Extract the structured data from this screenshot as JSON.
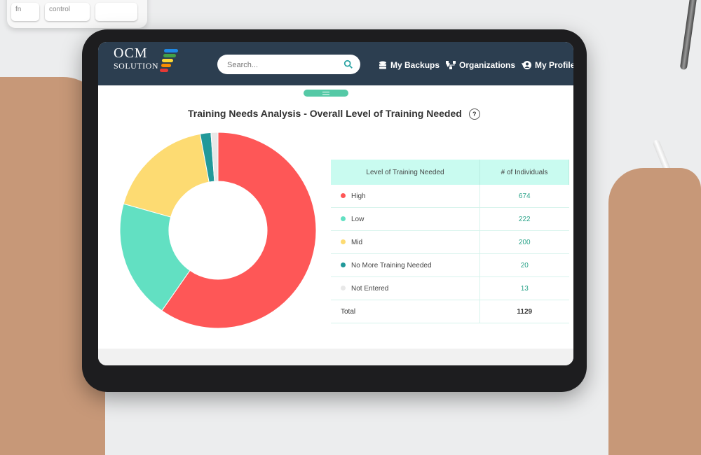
{
  "keyboard": {
    "keys": [
      "fn",
      "control"
    ]
  },
  "app": {
    "logo": {
      "line1": "OCM",
      "line2": "SOLUTION",
      "bar_colors": [
        "#1e88e5",
        "#43a047",
        "#fdd835",
        "#fb8c00",
        "#e53935"
      ]
    },
    "search": {
      "placeholder": "Search..."
    },
    "nav": {
      "backups": "My Backups",
      "organizations": "Organizations",
      "profile": "My Profile"
    }
  },
  "card": {
    "title": "Training Needs Analysis - Overall Level of Training Needed",
    "help": "?"
  },
  "chart_data": {
    "type": "pie",
    "title": "Training Needs Analysis - Overall Level of Training Needed",
    "donut": true,
    "slices": [
      {
        "label": "High",
        "value": 674,
        "color": "#fe5757"
      },
      {
        "label": "Low",
        "value": 222,
        "color": "#62e0c2"
      },
      {
        "label": "Mid",
        "value": 200,
        "color": "#fddb72"
      },
      {
        "label": "No More Training Needed",
        "value": 20,
        "color": "#21999a"
      },
      {
        "label": "Not Entered",
        "value": 13,
        "color": "#e8e8e8"
      }
    ]
  },
  "table": {
    "headers": [
      "Level of Training Needed",
      "# of Individuals"
    ],
    "rows": [
      {
        "label": "High",
        "value": "674",
        "color": "#fe5757"
      },
      {
        "label": "Low",
        "value": "222",
        "color": "#62e0c2"
      },
      {
        "label": "Mid",
        "value": "200",
        "color": "#fddb72"
      },
      {
        "label": "No More Training Needed",
        "value": "20",
        "color": "#21999a"
      },
      {
        "label": "Not Entered",
        "value": "13",
        "color": "#e8e8e8"
      }
    ],
    "total": {
      "label": "Total",
      "value": "1129"
    }
  }
}
